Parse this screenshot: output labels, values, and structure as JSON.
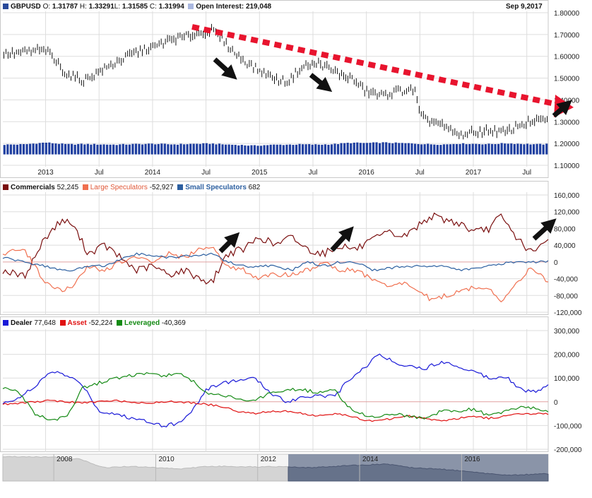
{
  "header": {
    "symbol": "GBPUSD",
    "o_label": "O:",
    "o_value": "1.31787",
    "h_label": "H:",
    "h_value": "1.33291",
    "l_label": "L:",
    "l_value": "1.31585",
    "c_label": "C:",
    "c_value": "1.31994",
    "oi_label": "Open Interest:",
    "oi_value": "219,048",
    "date": "Sep 9,2017"
  },
  "colors": {
    "price": "#111111",
    "oi_bar": "#1f3fa0",
    "grid": "#dddddd",
    "trend_arrow": "#e8142e",
    "annotation_arrow": "#111111",
    "commercials": "#7a0f0f",
    "large_spec": "#f07050",
    "small_spec": "#2c5fa0",
    "dealer": "#1a1ad8",
    "asset": "#e01010",
    "leveraged": "#148a14",
    "nav_light": "#d4d4d4",
    "nav_dark": "#66728a"
  },
  "chart_data": [
    {
      "type": "line",
      "name": "price",
      "title": "GBPUSD",
      "ylim": [
        1.1,
        1.8
      ],
      "yticks": [
        "1.10000",
        "1.20000",
        "1.30000",
        "1.40000",
        "1.50000",
        "1.60000",
        "1.70000",
        "1.80000"
      ],
      "ytick_values": [
        1.1,
        1.2,
        1.3,
        1.4,
        1.5,
        1.6,
        1.7,
        1.8
      ],
      "xlabels": [
        "2013",
        "Jul",
        "2014",
        "Jul",
        "2015",
        "Jul",
        "2016",
        "Jul",
        "2017",
        "Jul"
      ],
      "x": [
        2012.6,
        2012.8,
        2013.0,
        2013.2,
        2013.35,
        2013.5,
        2013.65,
        2013.85,
        2014.0,
        2014.2,
        2014.4,
        2014.55,
        2014.65,
        2014.8,
        2014.95,
        2015.1,
        2015.25,
        2015.4,
        2015.55,
        2015.7,
        2015.85,
        2016.0,
        2016.15,
        2016.3,
        2016.45,
        2016.5,
        2016.55,
        2016.65,
        2016.75,
        2016.85,
        2017.0,
        2017.15,
        2017.3,
        2017.45,
        2017.6,
        2017.7
      ],
      "close": [
        1.61,
        1.62,
        1.63,
        1.52,
        1.49,
        1.53,
        1.57,
        1.62,
        1.64,
        1.68,
        1.7,
        1.72,
        1.68,
        1.6,
        1.55,
        1.51,
        1.48,
        1.55,
        1.57,
        1.53,
        1.5,
        1.44,
        1.42,
        1.44,
        1.45,
        1.33,
        1.31,
        1.3,
        1.27,
        1.24,
        1.25,
        1.26,
        1.25,
        1.29,
        1.3,
        1.32
      ],
      "open_interest_scale": [
        1.2,
        1.3
      ],
      "open_interest_rel": [
        0.58,
        0.6,
        0.74,
        0.6,
        0.62,
        0.6,
        0.58,
        0.62,
        0.64,
        0.6,
        0.64,
        0.66,
        0.6,
        0.56,
        0.5,
        0.56,
        0.58,
        0.6,
        0.58,
        0.62,
        0.72,
        0.7,
        0.74,
        0.7,
        0.66,
        0.64,
        0.62,
        0.6,
        0.6,
        0.66,
        0.64,
        0.62,
        0.68,
        0.64,
        0.6,
        0.62
      ]
    },
    {
      "type": "line",
      "name": "cot_groups",
      "ylim": [
        -120000,
        160000
      ],
      "yticks": [
        "160,000",
        "120,000",
        "80,000",
        "40,000",
        "0",
        "-40,000",
        "-80,000",
        "-120,000"
      ],
      "ytick_values": [
        160000,
        120000,
        80000,
        40000,
        0,
        -40000,
        -80000,
        -120000
      ],
      "x": [
        2012.6,
        2012.8,
        2013.0,
        2013.15,
        2013.25,
        2013.4,
        2013.55,
        2013.7,
        2013.85,
        2014.0,
        2014.15,
        2014.3,
        2014.45,
        2014.55,
        2014.7,
        2014.85,
        2015.0,
        2015.15,
        2015.3,
        2015.45,
        2015.6,
        2015.75,
        2015.9,
        2016.05,
        2016.2,
        2016.35,
        2016.5,
        2016.6,
        2016.75,
        2016.9,
        2017.0,
        2017.15,
        2017.25,
        2017.4,
        2017.55,
        2017.7
      ],
      "series": [
        {
          "name": "Commercials",
          "label": "52,245",
          "values": [
            -20000,
            -35000,
            60000,
            100000,
            90000,
            20000,
            40000,
            10000,
            -20000,
            -10000,
            -30000,
            -20000,
            -40000,
            -50000,
            20000,
            30000,
            60000,
            40000,
            60000,
            30000,
            20000,
            40000,
            30000,
            50000,
            70000,
            60000,
            90000,
            110000,
            100000,
            90000,
            70000,
            80000,
            110000,
            60000,
            20000,
            52245
          ]
        },
        {
          "name": "Large Speculators",
          "label": "-52,927",
          "values": [
            20000,
            30000,
            -50000,
            -70000,
            -60000,
            -10000,
            -20000,
            0,
            10000,
            0,
            20000,
            10000,
            30000,
            40000,
            -10000,
            -20000,
            -40000,
            -30000,
            -30000,
            -20000,
            0,
            -20000,
            -20000,
            -40000,
            -60000,
            -50000,
            -70000,
            -90000,
            -80000,
            -70000,
            -60000,
            -60000,
            -100000,
            -50000,
            -10000,
            -52927
          ]
        },
        {
          "name": "Small Speculators",
          "label": "682",
          "values": [
            10000,
            0,
            -10000,
            -20000,
            -20000,
            -10000,
            -10000,
            5000,
            20000,
            15000,
            10000,
            15000,
            15000,
            20000,
            0,
            -10000,
            -10000,
            -10000,
            -20000,
            0,
            -10000,
            0,
            0,
            -20000,
            -15000,
            -10000,
            -10000,
            -10000,
            -10000,
            -20000,
            -15000,
            -10000,
            -5000,
            0,
            0,
            682
          ]
        }
      ]
    },
    {
      "type": "line",
      "name": "disaggregated",
      "ylim": [
        -200000,
        300000
      ],
      "yticks": [
        "300,000",
        "200,000",
        "100,000",
        "0",
        "-100,000",
        "-200,000"
      ],
      "ytick_values": [
        300000,
        200000,
        100000,
        0,
        -100000,
        -200000
      ],
      "x": [
        2012.6,
        2012.75,
        2012.9,
        2013.05,
        2013.2,
        2013.35,
        2013.5,
        2013.65,
        2013.8,
        2013.95,
        2014.1,
        2014.25,
        2014.4,
        2014.5,
        2014.65,
        2014.8,
        2014.95,
        2015.1,
        2015.25,
        2015.4,
        2015.55,
        2015.7,
        2015.85,
        2016.0,
        2016.1,
        2016.25,
        2016.4,
        2016.55,
        2016.7,
        2016.85,
        2017.0,
        2017.15,
        2017.3,
        2017.45,
        2017.6,
        2017.7
      ],
      "series": [
        {
          "name": "Dealer",
          "label": "77,648",
          "values": [
            -10000,
            20000,
            60000,
            130000,
            110000,
            70000,
            -40000,
            -50000,
            -70000,
            -80000,
            -100000,
            -90000,
            -20000,
            50000,
            80000,
            90000,
            100000,
            40000,
            0,
            20000,
            30000,
            20000,
            100000,
            150000,
            200000,
            170000,
            150000,
            140000,
            170000,
            150000,
            130000,
            100000,
            110000,
            50000,
            40000,
            77648
          ]
        },
        {
          "name": "Asset",
          "label": "-52,224",
          "values": [
            -10000,
            -5000,
            0,
            5000,
            0,
            -5000,
            0,
            5000,
            0,
            -5000,
            0,
            0,
            -5000,
            -10000,
            -20000,
            -40000,
            -50000,
            -40000,
            -40000,
            -50000,
            -60000,
            -50000,
            -60000,
            -80000,
            -80000,
            -70000,
            -60000,
            -70000,
            -80000,
            -70000,
            -60000,
            -70000,
            -60000,
            -50000,
            -50000,
            -52224
          ]
        },
        {
          "name": "Leveraged",
          "label": "-40,369",
          "values": [
            60000,
            40000,
            -50000,
            -80000,
            -60000,
            60000,
            80000,
            100000,
            110000,
            120000,
            110000,
            120000,
            80000,
            40000,
            30000,
            10000,
            0,
            40000,
            50000,
            50000,
            40000,
            50000,
            -30000,
            -60000,
            -60000,
            -50000,
            -60000,
            -70000,
            -40000,
            -40000,
            -30000,
            -60000,
            -40000,
            -20000,
            -30000,
            -40369
          ]
        }
      ]
    },
    {
      "type": "area",
      "name": "navigator",
      "xlabels": [
        "2008",
        "2010",
        "2012",
        "2014",
        "2016"
      ],
      "label_years": [
        2008,
        2010,
        2012,
        2014,
        2016
      ],
      "x": [
        2007.0,
        2007.5,
        2008.0,
        2008.5,
        2009.0,
        2009.5,
        2010.0,
        2010.5,
        2011.0,
        2011.5,
        2012.0,
        2012.5,
        2013.0,
        2013.5,
        2014.0,
        2014.5,
        2015.0,
        2015.5,
        2016.0,
        2016.5,
        2017.0,
        2017.7
      ],
      "values": [
        2.0,
        2.0,
        1.98,
        1.9,
        1.55,
        1.6,
        1.55,
        1.5,
        1.6,
        1.6,
        1.58,
        1.6,
        1.55,
        1.6,
        1.65,
        1.7,
        1.55,
        1.5,
        1.42,
        1.3,
        1.24,
        1.3
      ],
      "ylim": [
        1.0,
        2.1
      ],
      "highlight_from": 2012.6
    }
  ],
  "panel2": {
    "commercials_label": "Commercials",
    "commercials_value": "52,245",
    "large_label": "Large Speculators",
    "large_value": "-52,927",
    "small_label": "Small Speculators",
    "small_value": "682"
  },
  "panel3": {
    "dealer_label": "Dealer",
    "dealer_value": "77,648",
    "asset_label": "Asset",
    "asset_value": "-52,224",
    "leveraged_label": "Leveraged",
    "leveraged_value": "-40,369"
  }
}
